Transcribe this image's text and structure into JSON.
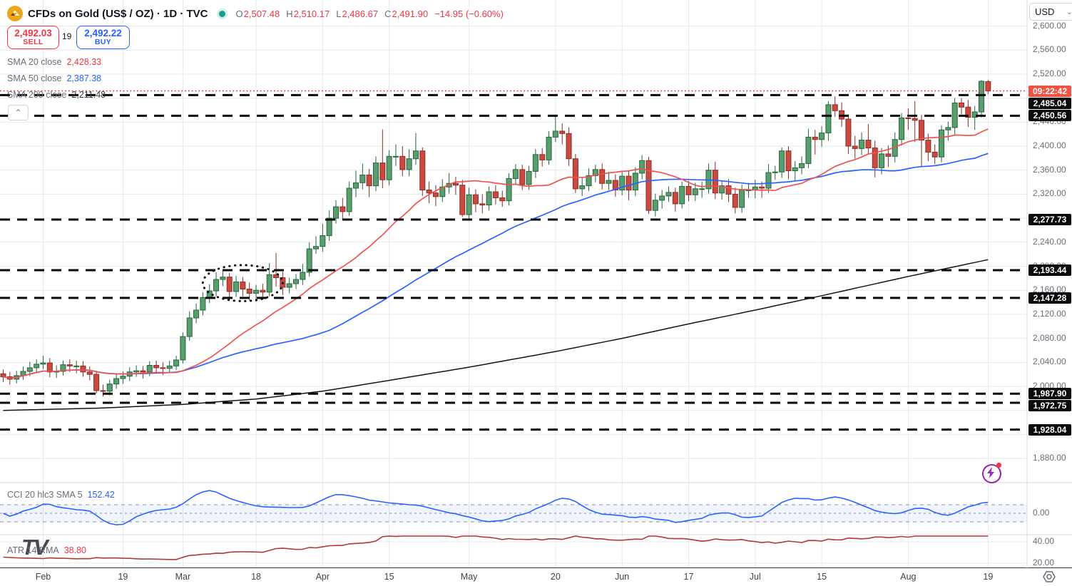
{
  "header": {
    "symbol_title": "CFDs on Gold (US$ / OZ) · 1D · TVC",
    "ohlc": {
      "o_label": "O",
      "o": "2,507.48",
      "h_label": "H",
      "h": "2,510.17",
      "l_label": "L",
      "l": "2,486.67",
      "c_label": "C",
      "c": "2,491.90",
      "change": "−14.95 (−0.60%)"
    },
    "sell": {
      "price": "2,492.03",
      "label": "SELL"
    },
    "spread": "19",
    "buy": {
      "price": "2,492.22",
      "label": "BUY"
    },
    "indicators": [
      {
        "label": "SMA 20 close",
        "value": "2,428.33",
        "color": "#f23645"
      },
      {
        "label": "SMA 50 close",
        "value": "2,387.38",
        "color": "#2962ff"
      },
      {
        "label": "SMA 200 close",
        "value": "2,211.48",
        "color": "#363a45"
      }
    ]
  },
  "watermark": "TV",
  "icons": {
    "dropdown_chevron": "⌄",
    "collapse_chevron": "⌃"
  },
  "axis": {
    "currency": "USD",
    "countdown": "09:22:42",
    "price_labels": [
      {
        "label": "2,600.00",
        "price": 2600
      },
      {
        "label": "2,560.00",
        "price": 2560
      },
      {
        "label": "2,520.00",
        "price": 2520
      },
      {
        "label": "2,440.00",
        "price": 2440
      },
      {
        "label": "2,400.00",
        "price": 2400
      },
      {
        "label": "2,360.00",
        "price": 2360
      },
      {
        "label": "2,320.00",
        "price": 2320
      },
      {
        "label": "2,240.00",
        "price": 2240
      },
      {
        "label": "2,200.00",
        "price": 2200
      },
      {
        "label": "2,160.00",
        "price": 2160
      },
      {
        "label": "2,120.00",
        "price": 2120
      },
      {
        "label": "2,080.00",
        "price": 2080
      },
      {
        "label": "2,040.00",
        "price": 2040
      },
      {
        "label": "2,000.00",
        "price": 2000
      },
      {
        "label": "1,880.00",
        "price": 1880
      }
    ],
    "cci_labels": [
      {
        "label": "0.00",
        "value": 0
      }
    ],
    "atr_labels": [
      {
        "label": "40.00",
        "value": 40
      },
      {
        "label": "20.00",
        "value": 20
      }
    ]
  },
  "panes": {
    "cci": {
      "legend": "CCI 20 hlc3 SMA 5",
      "value": "152.42"
    },
    "atr": {
      "legend": "ATR 14 RMA",
      "value": "38.80"
    }
  },
  "chart_data": {
    "type": "candlestick",
    "title": "CFDs on Gold (US$ / OZ), Daily, TVC",
    "last_price": 2491.9,
    "price_axis": {
      "min": 1860,
      "max": 2610,
      "grid_step": 40
    },
    "levels": [
      {
        "price": 2485.04,
        "label": "2,485.04"
      },
      {
        "price": 2450.56,
        "label": "2,450.56"
      },
      {
        "price": 2277.73,
        "label": "2,277.73"
      },
      {
        "price": 2193.44,
        "label": "2,193.44"
      },
      {
        "price": 2147.28,
        "label": "2,147.28"
      },
      {
        "price": 1987.9,
        "label": "1,987.90"
      },
      {
        "price": 1972.75,
        "label": "1,972.75"
      },
      {
        "price": 1928.04,
        "label": "1,928.04"
      }
    ],
    "time_ticks": [
      {
        "index": 6,
        "label": "Feb"
      },
      {
        "index": 18,
        "label": "19"
      },
      {
        "index": 27,
        "label": "Mar"
      },
      {
        "index": 38,
        "label": "18"
      },
      {
        "index": 48,
        "label": "Apr"
      },
      {
        "index": 58,
        "label": "15"
      },
      {
        "index": 70,
        "label": "May"
      },
      {
        "index": 83,
        "label": "20"
      },
      {
        "index": 93,
        "label": "Jun"
      },
      {
        "index": 103,
        "label": "17"
      },
      {
        "index": 113,
        "label": "Jul"
      },
      {
        "index": 123,
        "label": "15"
      },
      {
        "index": 136,
        "label": "Aug"
      },
      {
        "index": 148,
        "label": "19"
      }
    ],
    "sma200_points": [
      [
        0,
        1960
      ],
      [
        15,
        1964
      ],
      [
        27,
        1970
      ],
      [
        38,
        1979
      ],
      [
        48,
        1992
      ],
      [
        58,
        2010
      ],
      [
        70,
        2032
      ],
      [
        83,
        2058
      ],
      [
        93,
        2080
      ],
      [
        103,
        2104
      ],
      [
        113,
        2127
      ],
      [
        123,
        2151
      ],
      [
        136,
        2183
      ],
      [
        148,
        2211
      ]
    ],
    "indicators": {
      "sma20": {
        "period": 20,
        "last": 2428.33
      },
      "sma50": {
        "period": 50,
        "last": 2387.38
      },
      "sma200": {
        "period": 200,
        "last": 2211.48
      },
      "cci": {
        "period": 20,
        "source": "hlc3",
        "smoothing": 5,
        "last": 152.42,
        "band": [
          -100,
          100
        ]
      },
      "atr": {
        "period": 14,
        "smoothing": "RMA",
        "last": 38.8
      }
    },
    "drawings": [
      {
        "type": "dotted-ellipse",
        "center_index": 36,
        "center_price": 2172,
        "rx_bars": 6,
        "ry_price": 30
      }
    ],
    "colors": {
      "up": "#5a9e6f",
      "up_border": "#23663b",
      "down": "#cb4a40",
      "down_border": "#8f2b25",
      "sma20": "#ef5350",
      "sma50": "#2962ff",
      "sma200": "#14151a",
      "level": "#0a0a0a",
      "price_line": "#f23645",
      "cci": "#2962ff",
      "cci_band": "rgba(41,98,255,0.07)",
      "atr": "#b03a36",
      "grid": "#e7e9ee"
    },
    "ohlc": [
      [
        2021,
        2028,
        2007,
        2016
      ],
      [
        2016,
        2024,
        2003,
        2012
      ],
      [
        2012,
        2026,
        2005,
        2018
      ],
      [
        2018,
        2033,
        2011,
        2025
      ],
      [
        2025,
        2041,
        2017,
        2031
      ],
      [
        2031,
        2045,
        2023,
        2037
      ],
      [
        2037,
        2051,
        2029,
        2039
      ],
      [
        2039,
        2047,
        2015,
        2024
      ],
      [
        2024,
        2035,
        2014,
        2025
      ],
      [
        2025,
        2043,
        2018,
        2036
      ],
      [
        2036,
        2045,
        2024,
        2034
      ],
      [
        2034,
        2043,
        2022,
        2034
      ],
      [
        2034,
        2042,
        2016,
        2024
      ],
      [
        2024,
        2033,
        2010,
        2020
      ],
      [
        2020,
        2026,
        1988,
        1993
      ],
      [
        1993,
        2003,
        1983,
        1992
      ],
      [
        1992,
        2011,
        1985,
        2004
      ],
      [
        2004,
        2021,
        1996,
        2013
      ],
      [
        2013,
        2025,
        2004,
        2017
      ],
      [
        2017,
        2032,
        2009,
        2024
      ],
      [
        2024,
        2035,
        2016,
        2026
      ],
      [
        2026,
        2034,
        2013,
        2024
      ],
      [
        2024,
        2042,
        2017,
        2035
      ],
      [
        2035,
        2043,
        2021,
        2031
      ],
      [
        2031,
        2040,
        2019,
        2030
      ],
      [
        2030,
        2043,
        2022,
        2034
      ],
      [
        2034,
        2051,
        2027,
        2044
      ],
      [
        2044,
        2090,
        2038,
        2083
      ],
      [
        2083,
        2125,
        2076,
        2114
      ],
      [
        2114,
        2138,
        2105,
        2127
      ],
      [
        2127,
        2157,
        2118,
        2148
      ],
      [
        2148,
        2170,
        2139,
        2159
      ],
      [
        2159,
        2190,
        2150,
        2178
      ],
      [
        2178,
        2193,
        2167,
        2182
      ],
      [
        2182,
        2189,
        2145,
        2158
      ],
      [
        2158,
        2184,
        2149,
        2174
      ],
      [
        2174,
        2182,
        2150,
        2162
      ],
      [
        2162,
        2173,
        2143,
        2155
      ],
      [
        2155,
        2169,
        2141,
        2160
      ],
      [
        2160,
        2171,
        2144,
        2157
      ],
      [
        2157,
        2205,
        2150,
        2186
      ],
      [
        2186,
        2222,
        2166,
        2181
      ],
      [
        2181,
        2191,
        2152,
        2165
      ],
      [
        2165,
        2181,
        2155,
        2171
      ],
      [
        2171,
        2187,
        2162,
        2178
      ],
      [
        2178,
        2204,
        2169,
        2190
      ],
      [
        2190,
        2240,
        2183,
        2229
      ],
      [
        2229,
        2250,
        2221,
        2233
      ],
      [
        2233,
        2271,
        2224,
        2251
      ],
      [
        2251,
        2293,
        2242,
        2280
      ],
      [
        2280,
        2310,
        2271,
        2299
      ],
      [
        2299,
        2314,
        2277,
        2291
      ],
      [
        2291,
        2341,
        2284,
        2330
      ],
      [
        2330,
        2359,
        2315,
        2339
      ],
      [
        2339,
        2371,
        2328,
        2352
      ],
      [
        2352,
        2362,
        2315,
        2334
      ],
      [
        2334,
        2383,
        2325,
        2372
      ],
      [
        2372,
        2428,
        2330,
        2344
      ],
      [
        2344,
        2393,
        2335,
        2383
      ],
      [
        2383,
        2403,
        2367,
        2383
      ],
      [
        2383,
        2400,
        2350,
        2361
      ],
      [
        2361,
        2395,
        2350,
        2379
      ],
      [
        2379,
        2422,
        2369,
        2392
      ],
      [
        2392,
        2398,
        2317,
        2327
      ],
      [
        2327,
        2341,
        2305,
        2322
      ],
      [
        2322,
        2335,
        2300,
        2316
      ],
      [
        2316,
        2345,
        2307,
        2332
      ],
      [
        2332,
        2355,
        2321,
        2338
      ],
      [
        2338,
        2349,
        2319,
        2335
      ],
      [
        2335,
        2344,
        2282,
        2286
      ],
      [
        2286,
        2331,
        2276,
        2319
      ],
      [
        2319,
        2328,
        2290,
        2304
      ],
      [
        2304,
        2320,
        2288,
        2302
      ],
      [
        2302,
        2333,
        2293,
        2324
      ],
      [
        2324,
        2335,
        2303,
        2314
      ],
      [
        2314,
        2326,
        2299,
        2309
      ],
      [
        2309,
        2355,
        2301,
        2346
      ],
      [
        2346,
        2370,
        2336,
        2361
      ],
      [
        2361,
        2369,
        2327,
        2336
      ],
      [
        2336,
        2367,
        2327,
        2358
      ],
      [
        2358,
        2395,
        2347,
        2386
      ],
      [
        2386,
        2397,
        2366,
        2377
      ],
      [
        2377,
        2425,
        2369,
        2415
      ],
      [
        2415,
        2450,
        2407,
        2425
      ],
      [
        2425,
        2438,
        2403,
        2421
      ],
      [
        2421,
        2431,
        2367,
        2379
      ],
      [
        2379,
        2387,
        2322,
        2329
      ],
      [
        2329,
        2348,
        2317,
        2334
      ],
      [
        2334,
        2363,
        2325,
        2351
      ],
      [
        2351,
        2369,
        2340,
        2361
      ],
      [
        2361,
        2371,
        2328,
        2338
      ],
      [
        2338,
        2357,
        2327,
        2343
      ],
      [
        2343,
        2353,
        2316,
        2327
      ],
      [
        2327,
        2359,
        2318,
        2350
      ],
      [
        2350,
        2360,
        2310,
        2327
      ],
      [
        2327,
        2365,
        2317,
        2355
      ],
      [
        2355,
        2385,
        2345,
        2376
      ],
      [
        2376,
        2382,
        2287,
        2293
      ],
      [
        2293,
        2321,
        2283,
        2310
      ],
      [
        2310,
        2327,
        2296,
        2317
      ],
      [
        2317,
        2333,
        2307,
        2323
      ],
      [
        2323,
        2331,
        2291,
        2304
      ],
      [
        2304,
        2341,
        2296,
        2333
      ],
      [
        2333,
        2342,
        2308,
        2319
      ],
      [
        2319,
        2339,
        2309,
        2329
      ],
      [
        2329,
        2341,
        2314,
        2329
      ],
      [
        2329,
        2371,
        2321,
        2360
      ],
      [
        2360,
        2374,
        2312,
        2322
      ],
      [
        2322,
        2343,
        2311,
        2334
      ],
      [
        2334,
        2345,
        2307,
        2320
      ],
      [
        2320,
        2331,
        2288,
        2298
      ],
      [
        2298,
        2336,
        2289,
        2327
      ],
      [
        2327,
        2339,
        2314,
        2327
      ],
      [
        2327,
        2344,
        2313,
        2332
      ],
      [
        2332,
        2341,
        2314,
        2330
      ],
      [
        2330,
        2370,
        2322,
        2356
      ],
      [
        2356,
        2367,
        2344,
        2357
      ],
      [
        2357,
        2398,
        2347,
        2392
      ],
      [
        2392,
        2400,
        2345,
        2359
      ],
      [
        2359,
        2375,
        2343,
        2364
      ],
      [
        2364,
        2383,
        2353,
        2371
      ],
      [
        2371,
        2429,
        2363,
        2415
      ],
      [
        2415,
        2427,
        2386,
        2411
      ],
      [
        2411,
        2433,
        2399,
        2422
      ],
      [
        2422,
        2475,
        2409,
        2469
      ],
      [
        2469,
        2483,
        2449,
        2459
      ],
      [
        2459,
        2473,
        2432,
        2445
      ],
      [
        2445,
        2453,
        2387,
        2400
      ],
      [
        2400,
        2417,
        2379,
        2396
      ],
      [
        2396,
        2423,
        2385,
        2410
      ],
      [
        2410,
        2437,
        2388,
        2397
      ],
      [
        2397,
        2409,
        2348,
        2364
      ],
      [
        2364,
        2397,
        2353,
        2387
      ],
      [
        2387,
        2401,
        2365,
        2383
      ],
      [
        2383,
        2423,
        2373,
        2411
      ],
      [
        2411,
        2455,
        2401,
        2447
      ],
      [
        2447,
        2463,
        2427,
        2446
      ],
      [
        2446,
        2475,
        2407,
        2443
      ],
      [
        2443,
        2452,
        2365,
        2410
      ],
      [
        2410,
        2421,
        2375,
        2390
      ],
      [
        2390,
        2403,
        2370,
        2382
      ],
      [
        2382,
        2435,
        2373,
        2427
      ],
      [
        2427,
        2441,
        2409,
        2431
      ],
      [
        2431,
        2480,
        2419,
        2472
      ],
      [
        2472,
        2480,
        2453,
        2465
      ],
      [
        2465,
        2477,
        2432,
        2448
      ],
      [
        2448,
        2467,
        2427,
        2457
      ],
      [
        2457,
        2510,
        2448,
        2508
      ],
      [
        2507.48,
        2510.17,
        2486.67,
        2491.9
      ]
    ]
  }
}
